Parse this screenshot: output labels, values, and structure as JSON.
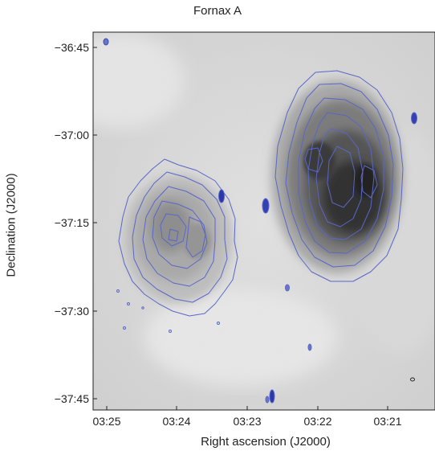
{
  "title": "Fornax A",
  "xlabel": "Right ascension (J2000)",
  "ylabel": "Declination (J2000)",
  "y_ticks": [
    "−36:45",
    "−37:00",
    "−37:15",
    "−37:30",
    "−37:45"
  ],
  "x_ticks": [
    "03:25",
    "03:24",
    "03:23",
    "03:22",
    "03:21"
  ],
  "colors": {
    "contour": "#5a66c8",
    "background": "#d3d3d3",
    "emission_dark": "#222222"
  },
  "image": {
    "description_type": "radio continuum grayscale with blue contours",
    "lobes": [
      "west-lobe",
      "east-lobe"
    ]
  }
}
